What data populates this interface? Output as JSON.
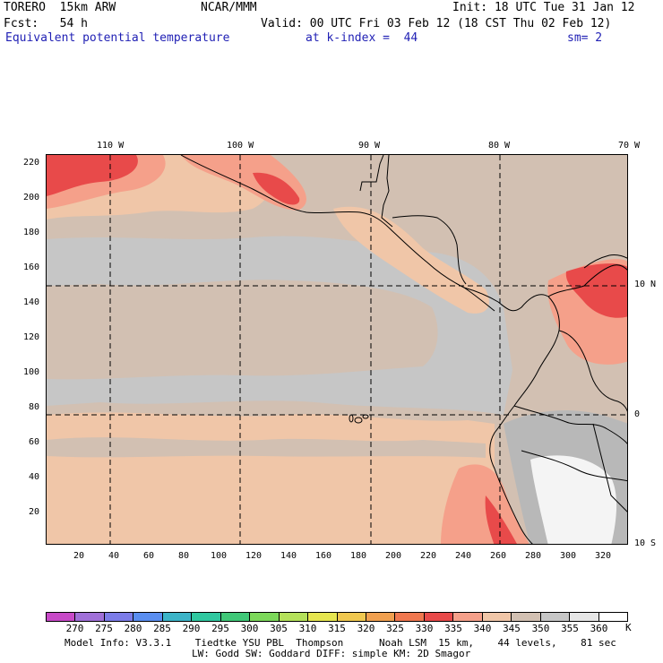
{
  "header": {
    "model": "TORERO  15km ARW",
    "center": "NCAR/MMM",
    "init": "Init: 18 UTC Tue 31 Jan 12",
    "fcst": "Fcst:   54 h",
    "valid": "Valid: 00 UTC Fri 03 Feb 12 (18 CST Thu 02 Feb 12)",
    "field": "Equivalent potential temperature",
    "level": "at k-index =  44",
    "smoothing": "sm= 2"
  },
  "map": {
    "lon_labels": [
      "110 W",
      "100 W",
      "90 W",
      "80 W",
      "70 W"
    ],
    "lat_labels": [
      "10 N",
      "0",
      "10 S"
    ],
    "y_ticks": [
      "220",
      "200",
      "180",
      "160",
      "140",
      "120",
      "100",
      "80",
      "60",
      "40",
      "20"
    ],
    "x_ticks": [
      "20",
      "40",
      "60",
      "80",
      "100",
      "120",
      "140",
      "160",
      "180",
      "200",
      "220",
      "240",
      "260",
      "280",
      "300",
      "320"
    ],
    "field_colors": {
      "bg": "#d2c0b2",
      "light": "#c6c6c6",
      "salmon": "#f0c6a8",
      "pink": "#f5a08a",
      "red": "#e84a4a",
      "white": "#f4f4f4",
      "grey": "#b8b8b8"
    }
  },
  "colorbar": {
    "labels": [
      "270",
      "275",
      "280",
      "285",
      "290",
      "295",
      "300",
      "305",
      "310",
      "315",
      "320",
      "325",
      "330",
      "335",
      "340",
      "345",
      "350",
      "355",
      "360"
    ],
    "unit": "K",
    "colors": [
      "#c84ac8",
      "#a070d8",
      "#7c7ce8",
      "#5a8ef0",
      "#3cb4c8",
      "#30c8a0",
      "#40c878",
      "#7cd85a",
      "#b4e15a",
      "#e6e650",
      "#f0c850",
      "#f0a050",
      "#f07850",
      "#e84a4a",
      "#f5a08a",
      "#f0c6a8",
      "#d2c0b2",
      "#c6c6c6",
      "#e6e6e6",
      "#ffffff"
    ]
  },
  "footer": {
    "line1": "Model Info: V3.3.1    Tiedtke YSU PBL  Thompson      Noah LSM  15 km,    44 levels,    81 sec",
    "line2": "LW: Godd SW: Goddard DIFF: simple KM: 2D Smagor"
  }
}
